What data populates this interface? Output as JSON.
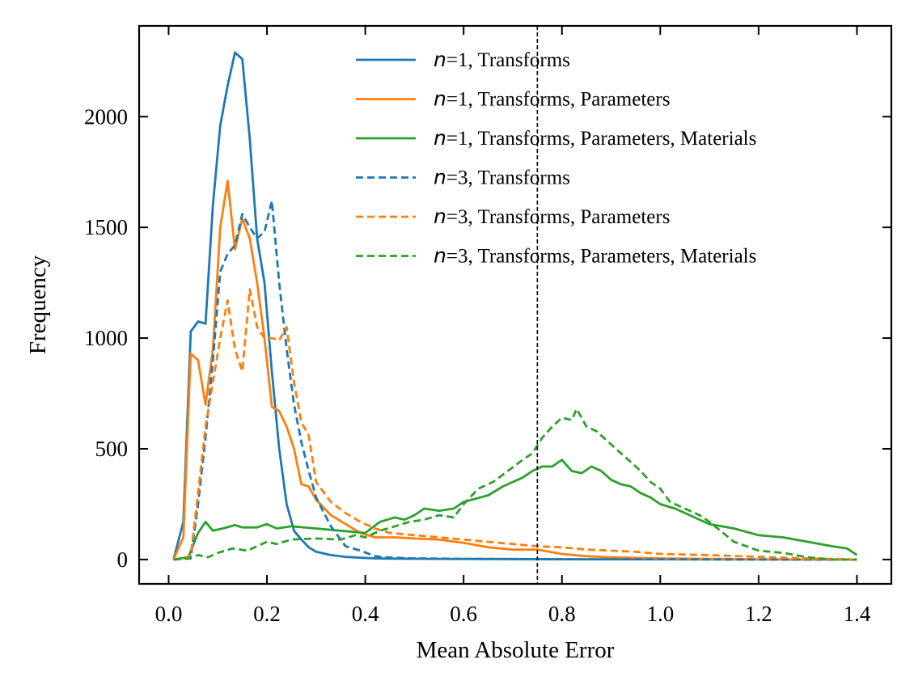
{
  "chart_data": {
    "type": "line",
    "title": "",
    "xlabel": "Mean Absolute Error",
    "ylabel": "Frequency",
    "xlim": [
      -0.06,
      1.47
    ],
    "ylim": [
      -110,
      2410
    ],
    "xticks": [
      "0.0",
      "0.2",
      "0.4",
      "0.6",
      "0.8",
      "1.0",
      "1.2",
      "1.4"
    ],
    "yticks": [
      "0",
      "500",
      "1000",
      "1500",
      "2000"
    ],
    "grid": false,
    "legend_position": "top-right",
    "reference_line": {
      "x": 0.75,
      "style": "dashed",
      "color": "#000000"
    },
    "series": [
      {
        "name": "n=1, Transforms",
        "color": "#1f77b4",
        "style": "solid",
        "points": [
          [
            0.01,
            0
          ],
          [
            0.03,
            170
          ],
          [
            0.045,
            1030
          ],
          [
            0.06,
            1075
          ],
          [
            0.075,
            1065
          ],
          [
            0.09,
            1600
          ],
          [
            0.105,
            1960
          ],
          [
            0.12,
            2140
          ],
          [
            0.135,
            2290
          ],
          [
            0.15,
            2260
          ],
          [
            0.165,
            1900
          ],
          [
            0.18,
            1450
          ],
          [
            0.195,
            1250
          ],
          [
            0.21,
            850
          ],
          [
            0.225,
            500
          ],
          [
            0.24,
            250
          ],
          [
            0.255,
            130
          ],
          [
            0.27,
            90
          ],
          [
            0.285,
            55
          ],
          [
            0.3,
            35
          ],
          [
            0.33,
            20
          ],
          [
            0.36,
            12
          ],
          [
            0.39,
            8
          ],
          [
            0.42,
            5
          ],
          [
            0.46,
            4
          ],
          [
            0.55,
            3
          ],
          [
            0.7,
            2
          ],
          [
            0.85,
            1
          ],
          [
            1.0,
            1
          ],
          [
            1.2,
            0
          ],
          [
            1.4,
            0
          ]
        ]
      },
      {
        "name": "n=1, Transforms, Parameters",
        "color": "#ff7f0e",
        "style": "solid",
        "points": [
          [
            0.01,
            0
          ],
          [
            0.03,
            100
          ],
          [
            0.045,
            930
          ],
          [
            0.06,
            900
          ],
          [
            0.075,
            700
          ],
          [
            0.09,
            950
          ],
          [
            0.105,
            1500
          ],
          [
            0.12,
            1710
          ],
          [
            0.135,
            1400
          ],
          [
            0.15,
            1540
          ],
          [
            0.165,
            1450
          ],
          [
            0.18,
            1250
          ],
          [
            0.195,
            1000
          ],
          [
            0.21,
            690
          ],
          [
            0.225,
            670
          ],
          [
            0.24,
            600
          ],
          [
            0.255,
            500
          ],
          [
            0.27,
            340
          ],
          [
            0.285,
            330
          ],
          [
            0.3,
            270
          ],
          [
            0.33,
            200
          ],
          [
            0.36,
            160
          ],
          [
            0.39,
            120
          ],
          [
            0.42,
            100
          ],
          [
            0.46,
            100
          ],
          [
            0.5,
            95
          ],
          [
            0.55,
            90
          ],
          [
            0.6,
            75
          ],
          [
            0.65,
            55
          ],
          [
            0.7,
            45
          ],
          [
            0.75,
            45
          ],
          [
            0.8,
            25
          ],
          [
            0.85,
            15
          ],
          [
            0.9,
            10
          ],
          [
            1.0,
            5
          ],
          [
            1.1,
            3
          ],
          [
            1.2,
            1
          ],
          [
            1.3,
            0
          ],
          [
            1.4,
            0
          ]
        ]
      },
      {
        "name": "n=1, Transforms, Parameters, Materials",
        "color": "#2ca02c",
        "style": "solid",
        "points": [
          [
            0.01,
            0
          ],
          [
            0.04,
            10
          ],
          [
            0.06,
            120
          ],
          [
            0.075,
            170
          ],
          [
            0.09,
            130
          ],
          [
            0.11,
            140
          ],
          [
            0.135,
            155
          ],
          [
            0.15,
            145
          ],
          [
            0.18,
            145
          ],
          [
            0.2,
            160
          ],
          [
            0.22,
            140
          ],
          [
            0.25,
            150
          ],
          [
            0.3,
            140
          ],
          [
            0.35,
            130
          ],
          [
            0.4,
            120
          ],
          [
            0.43,
            170
          ],
          [
            0.46,
            190
          ],
          [
            0.48,
            180
          ],
          [
            0.5,
            200
          ],
          [
            0.52,
            230
          ],
          [
            0.55,
            220
          ],
          [
            0.58,
            230
          ],
          [
            0.6,
            260
          ],
          [
            0.65,
            290
          ],
          [
            0.68,
            330
          ],
          [
            0.7,
            350
          ],
          [
            0.72,
            370
          ],
          [
            0.74,
            400
          ],
          [
            0.76,
            420
          ],
          [
            0.78,
            420
          ],
          [
            0.8,
            450
          ],
          [
            0.82,
            400
          ],
          [
            0.84,
            390
          ],
          [
            0.86,
            420
          ],
          [
            0.88,
            400
          ],
          [
            0.9,
            360
          ],
          [
            0.92,
            340
          ],
          [
            0.94,
            330
          ],
          [
            0.96,
            300
          ],
          [
            0.98,
            280
          ],
          [
            1.0,
            250
          ],
          [
            1.03,
            230
          ],
          [
            1.05,
            210
          ],
          [
            1.08,
            180
          ],
          [
            1.1,
            160
          ],
          [
            1.15,
            140
          ],
          [
            1.2,
            110
          ],
          [
            1.25,
            100
          ],
          [
            1.3,
            80
          ],
          [
            1.35,
            60
          ],
          [
            1.38,
            50
          ],
          [
            1.4,
            20
          ]
        ]
      },
      {
        "name": "n=3, Transforms",
        "color": "#1f77b4",
        "style": "dashed",
        "points": [
          [
            0.01,
            0
          ],
          [
            0.045,
            5
          ],
          [
            0.06,
            250
          ],
          [
            0.075,
            550
          ],
          [
            0.09,
            900
          ],
          [
            0.105,
            1300
          ],
          [
            0.12,
            1380
          ],
          [
            0.135,
            1420
          ],
          [
            0.15,
            1560
          ],
          [
            0.165,
            1500
          ],
          [
            0.18,
            1450
          ],
          [
            0.195,
            1480
          ],
          [
            0.21,
            1620
          ],
          [
            0.225,
            1250
          ],
          [
            0.24,
            950
          ],
          [
            0.255,
            700
          ],
          [
            0.27,
            530
          ],
          [
            0.285,
            400
          ],
          [
            0.3,
            280
          ],
          [
            0.33,
            150
          ],
          [
            0.36,
            60
          ],
          [
            0.39,
            40
          ],
          [
            0.42,
            15
          ],
          [
            0.44,
            10
          ],
          [
            0.46,
            8
          ],
          [
            0.5,
            5
          ],
          [
            0.6,
            3
          ],
          [
            0.7,
            2
          ],
          [
            0.8,
            1
          ],
          [
            1.0,
            1
          ],
          [
            1.2,
            0
          ],
          [
            1.4,
            0
          ]
        ]
      },
      {
        "name": "n=3, Transforms, Parameters",
        "color": "#ff7f0e",
        "style": "dashed",
        "points": [
          [
            0.01,
            0
          ],
          [
            0.045,
            15
          ],
          [
            0.06,
            300
          ],
          [
            0.075,
            600
          ],
          [
            0.09,
            800
          ],
          [
            0.105,
            1000
          ],
          [
            0.12,
            1170
          ],
          [
            0.135,
            950
          ],
          [
            0.15,
            850
          ],
          [
            0.165,
            1220
          ],
          [
            0.18,
            1050
          ],
          [
            0.195,
            1000
          ],
          [
            0.21,
            1000
          ],
          [
            0.225,
            990
          ],
          [
            0.24,
            1050
          ],
          [
            0.255,
            800
          ],
          [
            0.27,
            620
          ],
          [
            0.285,
            560
          ],
          [
            0.3,
            350
          ],
          [
            0.33,
            260
          ],
          [
            0.36,
            210
          ],
          [
            0.39,
            170
          ],
          [
            0.42,
            140
          ],
          [
            0.45,
            120
          ],
          [
            0.5,
            110
          ],
          [
            0.55,
            100
          ],
          [
            0.6,
            90
          ],
          [
            0.65,
            80
          ],
          [
            0.7,
            70
          ],
          [
            0.75,
            60
          ],
          [
            0.8,
            55
          ],
          [
            0.85,
            45
          ],
          [
            0.9,
            40
          ],
          [
            0.95,
            35
          ],
          [
            1.0,
            25
          ],
          [
            1.1,
            20
          ],
          [
            1.2,
            12
          ],
          [
            1.3,
            5
          ],
          [
            1.4,
            0
          ]
        ]
      },
      {
        "name": "n=3, Transforms, Parameters, Materials",
        "color": "#2ca02c",
        "style": "dashed",
        "points": [
          [
            0.01,
            0
          ],
          [
            0.04,
            5
          ],
          [
            0.06,
            20
          ],
          [
            0.08,
            10
          ],
          [
            0.1,
            30
          ],
          [
            0.13,
            50
          ],
          [
            0.16,
            40
          ],
          [
            0.2,
            80
          ],
          [
            0.22,
            70
          ],
          [
            0.25,
            90
          ],
          [
            0.3,
            95
          ],
          [
            0.35,
            90
          ],
          [
            0.38,
            110
          ],
          [
            0.4,
            100
          ],
          [
            0.43,
            130
          ],
          [
            0.46,
            150
          ],
          [
            0.49,
            170
          ],
          [
            0.52,
            180
          ],
          [
            0.55,
            200
          ],
          [
            0.58,
            190
          ],
          [
            0.6,
            250
          ],
          [
            0.63,
            320
          ],
          [
            0.66,
            350
          ],
          [
            0.69,
            400
          ],
          [
            0.72,
            450
          ],
          [
            0.74,
            480
          ],
          [
            0.76,
            550
          ],
          [
            0.78,
            600
          ],
          [
            0.8,
            640
          ],
          [
            0.82,
            630
          ],
          [
            0.83,
            680
          ],
          [
            0.85,
            600
          ],
          [
            0.87,
            580
          ],
          [
            0.9,
            520
          ],
          [
            0.93,
            460
          ],
          [
            0.96,
            400
          ],
          [
            0.98,
            350
          ],
          [
            1.0,
            320
          ],
          [
            1.02,
            260
          ],
          [
            1.05,
            230
          ],
          [
            1.08,
            200
          ],
          [
            1.1,
            170
          ],
          [
            1.15,
            80
          ],
          [
            1.2,
            40
          ],
          [
            1.25,
            30
          ],
          [
            1.3,
            10
          ],
          [
            1.35,
            0
          ],
          [
            1.4,
            0
          ]
        ]
      }
    ]
  }
}
